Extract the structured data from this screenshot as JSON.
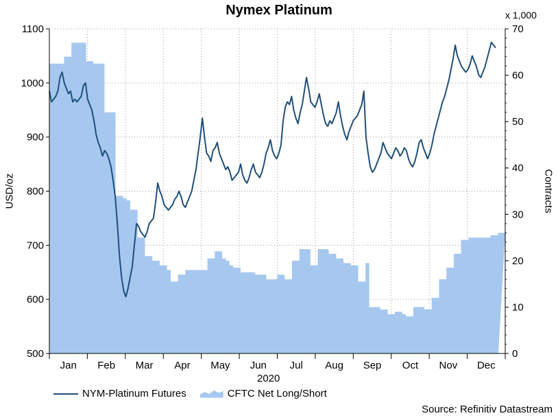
{
  "chart_data": {
    "type": "line+area",
    "title": "Nymex Platinum",
    "year_label": "2020",
    "ylabel_left": "USD/oz",
    "ylabel_right": "Contracts",
    "right_scale_note": "x 1,000",
    "ylim_left": [
      500,
      1100
    ],
    "ylim_right": [
      0,
      70
    ],
    "yticks_left": [
      500,
      600,
      700,
      800,
      900,
      1000,
      1100
    ],
    "yticks_right": [
      0,
      10,
      20,
      30,
      40,
      50,
      60,
      70
    ],
    "months": [
      "Jan",
      "Feb",
      "Mar",
      "Apr",
      "May",
      "Jun",
      "Jul",
      "Aug",
      "Sep",
      "Oct",
      "Nov",
      "Dec"
    ],
    "source": "Source: Refinitiv Datastream",
    "series": [
      {
        "name": "NYM-Platinum Futures",
        "axis": "left",
        "kind": "line",
        "color": "#1f4e79",
        "values": [
          985,
          965,
          970,
          975,
          985,
          1010,
          1020,
          1000,
          990,
          980,
          985,
          965,
          970,
          965,
          970,
          975,
          995,
          1000,
          970,
          960,
          950,
          930,
          905,
          890,
          880,
          865,
          875,
          870,
          860,
          845,
          820,
          790,
          740,
          680,
          640,
          615,
          605,
          620,
          640,
          660,
          700,
          740,
          735,
          725,
          720,
          715,
          725,
          740,
          745,
          750,
          780,
          815,
          800,
          790,
          775,
          770,
          765,
          770,
          775,
          785,
          790,
          800,
          790,
          775,
          770,
          780,
          790,
          800,
          820,
          840,
          870,
          900,
          935,
          900,
          870,
          865,
          855,
          875,
          880,
          890,
          870,
          860,
          850,
          840,
          845,
          835,
          820,
          825,
          830,
          835,
          850,
          830,
          820,
          815,
          825,
          840,
          850,
          835,
          830,
          825,
          835,
          850,
          870,
          880,
          895,
          875,
          865,
          860,
          870,
          885,
          930,
          955,
          965,
          960,
          975,
          950,
          935,
          925,
          945,
          960,
          985,
          1010,
          990,
          965,
          960,
          955,
          965,
          980,
          960,
          940,
          925,
          920,
          930,
          925,
          935,
          945,
          965,
          940,
          920,
          905,
          895,
          910,
          920,
          930,
          935,
          940,
          950,
          960,
          985,
          900,
          870,
          845,
          835,
          840,
          850,
          860,
          870,
          890,
          880,
          870,
          865,
          860,
          870,
          880,
          875,
          865,
          870,
          880,
          875,
          860,
          850,
          845,
          855,
          870,
          890,
          895,
          880,
          870,
          860,
          870,
          885,
          905,
          920,
          935,
          950,
          965,
          975,
          990,
          1005,
          1025,
          1045,
          1070,
          1050,
          1040,
          1030,
          1025,
          1020,
          1025,
          1035,
          1050,
          1040,
          1030,
          1015,
          1010,
          1020,
          1030,
          1045,
          1060,
          1075,
          1070,
          1065
        ]
      },
      {
        "name": "CFTC Net Long/Short",
        "axis": "right",
        "kind": "area",
        "color": "#a6c8ef",
        "values": [
          62.5,
          62.5,
          62.5,
          62.5,
          64,
          64,
          67,
          67,
          67,
          67,
          63,
          63,
          62.5,
          62.5,
          62.5,
          52,
          52,
          52,
          34,
          34,
          33.5,
          33,
          31,
          31,
          25,
          25,
          21,
          21,
          20,
          20,
          19,
          19,
          18,
          15.5,
          15.5,
          17,
          17,
          18,
          18,
          18,
          18,
          18,
          18,
          20.5,
          20.5,
          22,
          22,
          20.5,
          20,
          19,
          18.5,
          18.5,
          17.5,
          17.5,
          17.5,
          17.5,
          17,
          17,
          17,
          16,
          16,
          16,
          17,
          17,
          16,
          16,
          20,
          20,
          22.5,
          22.5,
          22.5,
          19,
          19,
          22.5,
          22.5,
          22.5,
          21.5,
          21.5,
          20.5,
          20.5,
          19.5,
          19.5,
          19,
          19,
          15.5,
          15.5,
          19.5,
          10,
          10,
          10,
          9.5,
          9.5,
          8.5,
          8.5,
          9,
          9,
          8.5,
          8,
          8,
          10,
          10,
          10,
          9.5,
          9.5,
          12,
          12,
          16,
          16,
          18.5,
          18.5,
          21.5,
          21.5,
          24.5,
          24.5,
          25,
          25,
          25,
          25,
          25,
          25,
          25.5,
          25.5,
          26,
          26
        ]
      }
    ]
  }
}
